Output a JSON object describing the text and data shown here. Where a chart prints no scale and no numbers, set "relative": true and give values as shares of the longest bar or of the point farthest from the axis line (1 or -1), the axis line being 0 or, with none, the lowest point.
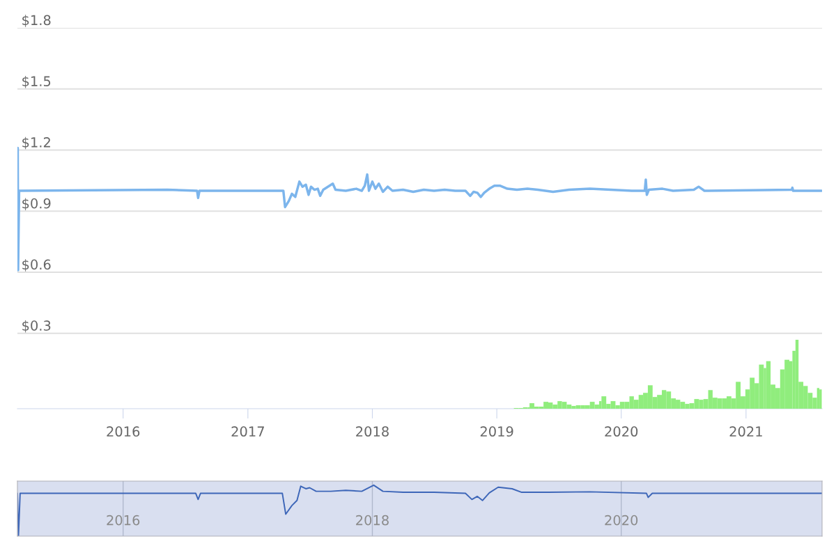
{
  "chart_data": [
    {
      "type": "line",
      "xlim": [
        "2015-02-25",
        "2021-08-12"
      ],
      "ylim": [
        -0.07,
        1.8
      ],
      "yticks": [
        {
          "value": 0.3,
          "label": "$0.3"
        },
        {
          "value": 0.6,
          "label": "$0.6"
        },
        {
          "value": 0.9,
          "label": "$0.9"
        },
        {
          "value": 1.2,
          "label": "$1.2"
        },
        {
          "value": 1.5,
          "label": "$1.5"
        },
        {
          "value": 1.8,
          "label": "$1.8"
        }
      ],
      "xticks": [
        {
          "value": "2016-01-01",
          "label": "2016"
        },
        {
          "value": "2017-01-01",
          "label": "2017"
        },
        {
          "value": "2018-01-01",
          "label": "2018"
        },
        {
          "value": "2019-01-01",
          "label": "2019"
        },
        {
          "value": "2020-01-01",
          "label": "2020"
        },
        {
          "value": "2021-01-01",
          "label": "2021"
        }
      ],
      "grid": "y",
      "x": [
        "2015-02-26",
        "2015-02-27",
        "2015-03-02",
        "2016-05-10",
        "2016-08-05",
        "2016-08-08",
        "2016-08-12",
        "2017-04-15",
        "2017-04-20",
        "2017-05-01",
        "2017-05-10",
        "2017-05-20",
        "2017-06-01",
        "2017-06-10",
        "2017-06-20",
        "2017-06-28",
        "2017-07-05",
        "2017-07-15",
        "2017-07-25",
        "2017-08-01",
        "2017-08-10",
        "2017-09-07",
        "2017-09-15",
        "2017-10-15",
        "2017-11-15",
        "2017-12-01",
        "2017-12-10",
        "2017-12-17",
        "2017-12-22",
        "2018-01-01",
        "2018-01-10",
        "2018-01-20",
        "2018-02-01",
        "2018-02-15",
        "2018-03-01",
        "2018-04-01",
        "2018-05-01",
        "2018-06-01",
        "2018-07-01",
        "2018-08-01",
        "2018-09-01",
        "2018-10-01",
        "2018-10-15",
        "2018-10-25",
        "2018-11-05",
        "2018-11-15",
        "2018-11-25",
        "2018-12-10",
        "2018-12-25",
        "2019-01-10",
        "2019-02-01",
        "2019-03-01",
        "2019-04-01",
        "2019-05-01",
        "2019-06-15",
        "2019-08-01",
        "2019-10-01",
        "2019-12-01",
        "2020-02-01",
        "2020-03-10",
        "2020-03-13",
        "2020-03-16",
        "2020-03-22",
        "2020-05-01",
        "2020-06-01",
        "2020-08-01",
        "2020-08-15",
        "2020-09-01",
        "2021-05-15",
        "2021-05-17",
        "2021-05-19",
        "2021-08-10"
      ],
      "series": [
        {
          "color": "#7cb5ec",
          "values": [
            1.21,
            0.61,
            1.0,
            1.005,
            1.0,
            0.965,
            1.0,
            1.0,
            0.92,
            0.95,
            0.985,
            0.97,
            1.045,
            1.02,
            1.03,
            0.98,
            1.02,
            1.005,
            1.01,
            0.975,
            1.005,
            1.035,
            1.005,
            1.0,
            1.01,
            1.0,
            1.025,
            1.08,
            1.0,
            1.045,
            1.01,
            1.035,
            0.995,
            1.02,
            1.0,
            1.005,
            0.995,
            1.005,
            1.0,
            1.005,
            1.0,
            1.0,
            0.975,
            0.995,
            0.99,
            0.97,
            0.99,
            1.01,
            1.025,
            1.025,
            1.01,
            1.005,
            1.01,
            1.005,
            0.995,
            1.005,
            1.01,
            1.005,
            1.0,
            1.0,
            1.055,
            0.98,
            1.005,
            1.01,
            1.0,
            1.005,
            1.02,
            1.0,
            1.005,
            1.015,
            1.0,
            1.0
          ]
        }
      ]
    },
    {
      "type": "bar",
      "relative": true,
      "tick_labels": false,
      "xlim": [
        "2015-02-25",
        "2021-08-12"
      ],
      "x": [
        "2019-02-20",
        "2019-03-06",
        "2019-03-19",
        "2019-04-02",
        "2019-04-07",
        "2019-04-21",
        "2019-05-04",
        "2019-05-18",
        "2019-06-01",
        "2019-06-14",
        "2019-06-28",
        "2019-07-11",
        "2019-07-25",
        "2019-08-08",
        "2019-08-21",
        "2019-09-04",
        "2019-09-17",
        "2019-10-01",
        "2019-10-15",
        "2019-10-28",
        "2019-11-04",
        "2019-11-18",
        "2019-12-01",
        "2019-12-15",
        "2019-12-28",
        "2020-01-11",
        "2020-01-25",
        "2020-02-07",
        "2020-02-21",
        "2020-03-05",
        "2020-03-19",
        "2020-04-02",
        "2020-04-15",
        "2020-04-29",
        "2020-05-12",
        "2020-05-26",
        "2020-06-09",
        "2020-06-22",
        "2020-07-06",
        "2020-07-19",
        "2020-08-02",
        "2020-08-16",
        "2020-08-29",
        "2020-09-12",
        "2020-09-25",
        "2020-10-09",
        "2020-10-23",
        "2020-11-05",
        "2020-11-19",
        "2020-12-02",
        "2020-12-16",
        "2020-12-30",
        "2021-01-12",
        "2021-01-26",
        "2021-02-08",
        "2021-02-22",
        "2021-03-01",
        "2021-03-14",
        "2021-03-28",
        "2021-04-11",
        "2021-04-24",
        "2021-05-08",
        "2021-05-17",
        "2021-05-26",
        "2021-06-04",
        "2021-06-18",
        "2021-07-01",
        "2021-07-15",
        "2021-07-28",
        "2021-08-04"
      ],
      "series": [
        {
          "color": "#90ed7d",
          "values": [
            0.01,
            0.01,
            0.02,
            0.02,
            0.08,
            0.03,
            0.03,
            0.1,
            0.09,
            0.06,
            0.11,
            0.1,
            0.06,
            0.04,
            0.05,
            0.05,
            0.05,
            0.1,
            0.06,
            0.11,
            0.18,
            0.07,
            0.11,
            0.05,
            0.1,
            0.1,
            0.18,
            0.13,
            0.2,
            0.23,
            0.34,
            0.17,
            0.2,
            0.27,
            0.25,
            0.15,
            0.13,
            0.1,
            0.07,
            0.08,
            0.14,
            0.13,
            0.14,
            0.27,
            0.16,
            0.15,
            0.15,
            0.18,
            0.15,
            0.39,
            0.18,
            0.28,
            0.45,
            0.37,
            0.64,
            0.59,
            0.69,
            0.35,
            0.3,
            0.57,
            0.71,
            0.69,
            0.84,
            1.0,
            0.39,
            0.33,
            0.23,
            0.16,
            0.3,
            0.28
          ]
        }
      ]
    },
    {
      "type": "line",
      "relative": true,
      "tick_labels": "x",
      "grid": "x",
      "xlim": [
        "2015-02-25",
        "2021-08-12"
      ],
      "xticks": [
        {
          "value": "2016-01-01",
          "label": "2016"
        },
        {
          "value": "2018-01-01",
          "label": "2018"
        },
        {
          "value": "2020-01-01",
          "label": "2020"
        }
      ],
      "x": [
        "2015-02-25",
        "2015-02-28",
        "2015-03-05",
        "2016-08-01",
        "2016-08-08",
        "2016-08-15",
        "2017-04-12",
        "2017-04-22",
        "2017-05-10",
        "2017-05-25",
        "2017-06-05",
        "2017-06-20",
        "2017-07-01",
        "2017-07-20",
        "2017-09-01",
        "2017-10-15",
        "2017-12-01",
        "2018-01-05",
        "2018-02-01",
        "2018-04-01",
        "2018-07-01",
        "2018-10-01",
        "2018-10-20",
        "2018-11-05",
        "2018-11-20",
        "2018-12-10",
        "2019-01-05",
        "2019-02-15",
        "2019-03-15",
        "2019-06-01",
        "2019-10-01",
        "2020-03-15",
        "2020-03-20",
        "2020-04-01",
        "2021-08-12"
      ],
      "series": [
        {
          "color": "#3d66b8",
          "values": [
            0.84,
            0,
            0.84,
            0.84,
            0.72,
            0.84,
            0.84,
            0.43,
            0.6,
            0.7,
            0.98,
            0.93,
            0.95,
            0.88,
            0.88,
            0.9,
            0.88,
            1.0,
            0.88,
            0.86,
            0.86,
            0.84,
            0.72,
            0.78,
            0.7,
            0.85,
            0.96,
            0.93,
            0.86,
            0.86,
            0.87,
            0.84,
            0.76,
            0.84,
            0.84
          ]
        }
      ]
    }
  ]
}
